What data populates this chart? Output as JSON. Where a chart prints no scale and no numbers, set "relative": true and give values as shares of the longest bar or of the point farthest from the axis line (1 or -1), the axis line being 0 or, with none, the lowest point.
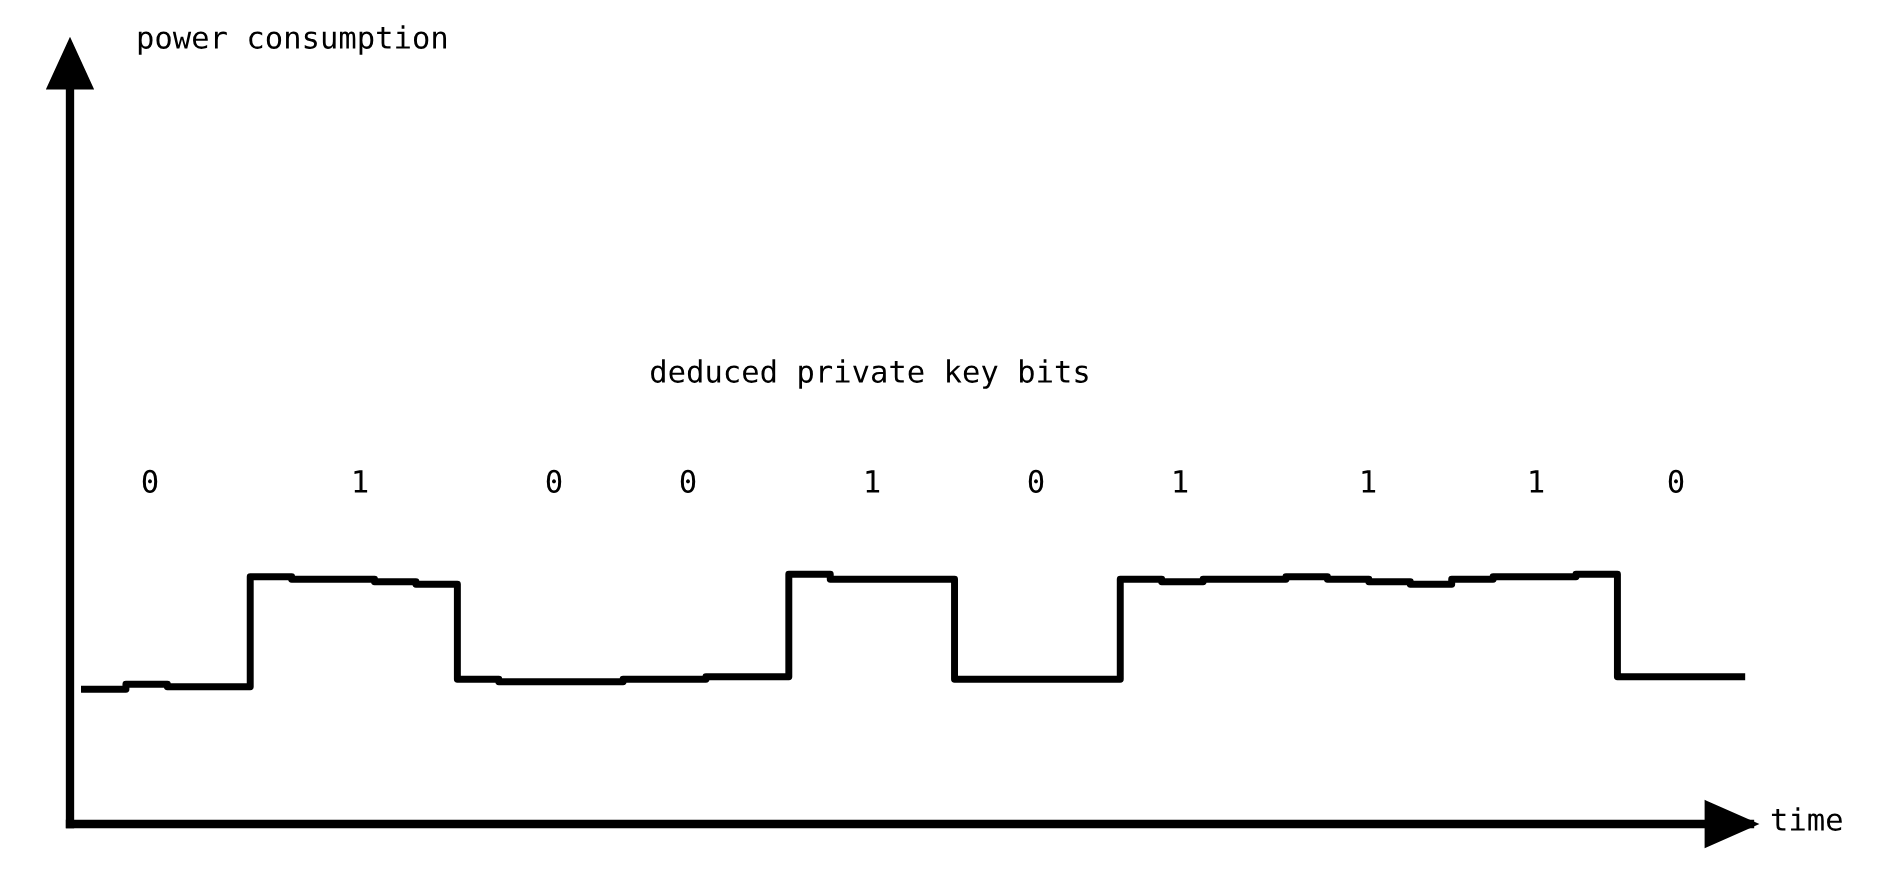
{
  "chart_data": {
    "type": "step",
    "relative": true,
    "xlabel": "time",
    "categories": [
      null,
      null,
      null,
      null,
      null,
      null,
      null,
      null,
      null,
      null,
      null,
      null,
      null,
      null,
      null,
      null,
      null,
      null,
      null,
      null,
      null,
      null,
      null,
      null,
      null,
      null,
      null,
      null,
      null,
      null,
      null,
      null,
      null,
      null,
      null,
      null,
      null,
      null,
      null,
      null,
      null
    ],
    "series": [
      {
        "color": "#000000",
        "values": [
          0.54,
          0.56,
          0.55,
          0.55,
          0.99,
          0.98,
          0.98,
          0.97,
          0.96,
          0.58,
          0.57,
          0.57,
          0.57,
          0.58,
          0.58,
          0.59,
          0.59,
          1.0,
          0.98,
          0.98,
          0.98,
          0.58,
          0.58,
          0.58,
          0.58,
          0.98,
          0.97,
          0.98,
          0.98,
          0.99,
          0.98,
          0.97,
          0.96,
          0.98,
          0.99,
          0.99,
          1.0,
          0.59,
          0.59,
          0.59,
          0.59
        ]
      }
    ],
    "annotations": [
      "power consumption",
      "deduced private key bits",
      "0",
      "1",
      "0",
      "0",
      "1",
      "0",
      "1",
      "1",
      "1",
      "0"
    ],
    "grid": false,
    "legend": false
  }
}
